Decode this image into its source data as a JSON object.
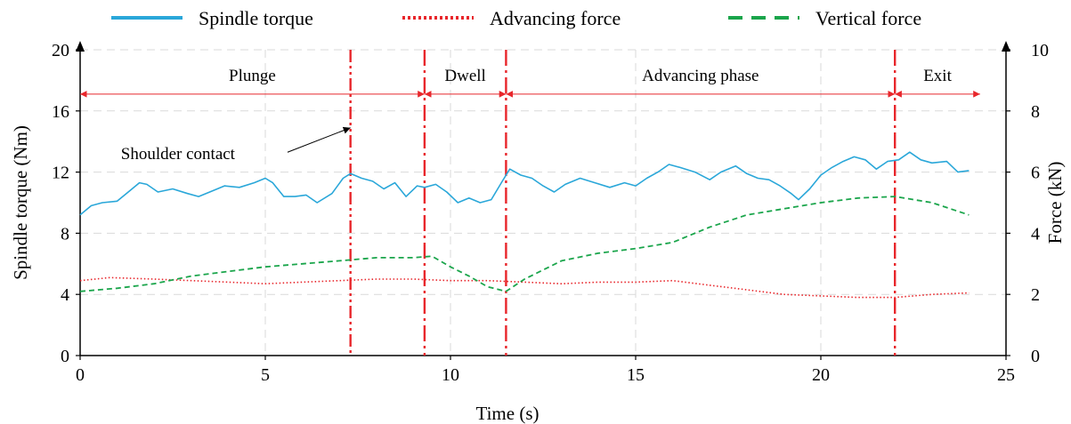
{
  "chart_data": {
    "type": "line",
    "title": "",
    "xlabel": "Time (s)",
    "ylabel": "Spindle torque (Nm)",
    "y2label": "Force (kN)",
    "xlim": [
      0,
      25
    ],
    "ylim": [
      0,
      20
    ],
    "y2lim": [
      0,
      10
    ],
    "xticks": [
      "0",
      "5",
      "10",
      "15",
      "20",
      "25"
    ],
    "yticks": [
      "0",
      "4",
      "8",
      "12",
      "16",
      "20"
    ],
    "y2ticks": [
      "0",
      "2",
      "4",
      "6",
      "8",
      "10"
    ],
    "grid": true,
    "legend_position": "top",
    "series": [
      {
        "name": "Spindle torque",
        "axis": "left",
        "color": "#2aa7d9",
        "style": "solid",
        "points": [
          [
            0,
            9.2
          ],
          [
            0.3,
            9.8
          ],
          [
            0.6,
            10.0
          ],
          [
            1.0,
            10.1
          ],
          [
            1.3,
            10.7
          ],
          [
            1.6,
            11.3
          ],
          [
            1.8,
            11.2
          ],
          [
            2.1,
            10.7
          ],
          [
            2.5,
            10.9
          ],
          [
            2.9,
            10.6
          ],
          [
            3.2,
            10.4
          ],
          [
            3.5,
            10.7
          ],
          [
            3.9,
            11.1
          ],
          [
            4.3,
            11.0
          ],
          [
            4.7,
            11.3
          ],
          [
            5.0,
            11.6
          ],
          [
            5.2,
            11.3
          ],
          [
            5.5,
            10.4
          ],
          [
            5.8,
            10.4
          ],
          [
            6.1,
            10.5
          ],
          [
            6.4,
            10.0
          ],
          [
            6.8,
            10.6
          ],
          [
            7.1,
            11.6
          ],
          [
            7.3,
            11.9
          ],
          [
            7.6,
            11.6
          ],
          [
            7.9,
            11.4
          ],
          [
            8.2,
            10.9
          ],
          [
            8.5,
            11.3
          ],
          [
            8.8,
            10.4
          ],
          [
            9.1,
            11.1
          ],
          [
            9.3,
            11.0
          ],
          [
            9.6,
            11.2
          ],
          [
            9.9,
            10.7
          ],
          [
            10.2,
            10.0
          ],
          [
            10.5,
            10.3
          ],
          [
            10.8,
            10.0
          ],
          [
            11.1,
            10.2
          ],
          [
            11.4,
            11.4
          ],
          [
            11.6,
            12.2
          ],
          [
            11.9,
            11.8
          ],
          [
            12.2,
            11.6
          ],
          [
            12.5,
            11.1
          ],
          [
            12.8,
            10.7
          ],
          [
            13.1,
            11.2
          ],
          [
            13.5,
            11.6
          ],
          [
            13.9,
            11.3
          ],
          [
            14.3,
            11.0
          ],
          [
            14.7,
            11.3
          ],
          [
            15.0,
            11.1
          ],
          [
            15.3,
            11.6
          ],
          [
            15.6,
            12.0
          ],
          [
            15.9,
            12.5
          ],
          [
            16.2,
            12.3
          ],
          [
            16.6,
            12.0
          ],
          [
            17.0,
            11.5
          ],
          [
            17.3,
            12.0
          ],
          [
            17.7,
            12.4
          ],
          [
            18.0,
            11.9
          ],
          [
            18.3,
            11.6
          ],
          [
            18.6,
            11.5
          ],
          [
            18.9,
            11.1
          ],
          [
            19.2,
            10.6
          ],
          [
            19.4,
            10.2
          ],
          [
            19.7,
            10.9
          ],
          [
            20.0,
            11.8
          ],
          [
            20.3,
            12.3
          ],
          [
            20.6,
            12.7
          ],
          [
            20.9,
            13.0
          ],
          [
            21.2,
            12.8
          ],
          [
            21.5,
            12.2
          ],
          [
            21.8,
            12.7
          ],
          [
            22.1,
            12.8
          ],
          [
            22.4,
            13.3
          ],
          [
            22.7,
            12.8
          ],
          [
            23.0,
            12.6
          ],
          [
            23.4,
            12.7
          ],
          [
            23.7,
            12.0
          ],
          [
            24.0,
            12.1
          ]
        ]
      },
      {
        "name": "Advancing force",
        "axis": "right",
        "color": "#e8262b",
        "style": "dotted",
        "points": [
          [
            0,
            2.45
          ],
          [
            0.8,
            2.55
          ],
          [
            2.0,
            2.5
          ],
          [
            3.0,
            2.45
          ],
          [
            4.0,
            2.4
          ],
          [
            5.0,
            2.35
          ],
          [
            6.0,
            2.4
          ],
          [
            7.0,
            2.45
          ],
          [
            8.0,
            2.5
          ],
          [
            9.0,
            2.5
          ],
          [
            10.0,
            2.45
          ],
          [
            11.0,
            2.45
          ],
          [
            12.0,
            2.4
          ],
          [
            13.0,
            2.35
          ],
          [
            14.0,
            2.4
          ],
          [
            15.0,
            2.4
          ],
          [
            16.0,
            2.45
          ],
          [
            17.0,
            2.3
          ],
          [
            18.0,
            2.15
          ],
          [
            19.0,
            2.0
          ],
          [
            20.0,
            1.95
          ],
          [
            21.0,
            1.9
          ],
          [
            22.0,
            1.9
          ],
          [
            23.0,
            2.0
          ],
          [
            24.0,
            2.05
          ]
        ]
      },
      {
        "name": "Vertical force",
        "axis": "right",
        "color": "#1aa54b",
        "style": "dashed",
        "points": [
          [
            0,
            2.1
          ],
          [
            1.0,
            2.2
          ],
          [
            2.0,
            2.35
          ],
          [
            3.0,
            2.6
          ],
          [
            4.0,
            2.75
          ],
          [
            5.0,
            2.9
          ],
          [
            6.0,
            3.0
          ],
          [
            7.0,
            3.1
          ],
          [
            8.0,
            3.2
          ],
          [
            9.0,
            3.2
          ],
          [
            9.5,
            3.25
          ],
          [
            10.0,
            2.9
          ],
          [
            10.5,
            2.6
          ],
          [
            11.0,
            2.25
          ],
          [
            11.5,
            2.1
          ],
          [
            12.0,
            2.5
          ],
          [
            13.0,
            3.1
          ],
          [
            14.0,
            3.35
          ],
          [
            15.0,
            3.5
          ],
          [
            16.0,
            3.7
          ],
          [
            17.0,
            4.2
          ],
          [
            18.0,
            4.6
          ],
          [
            19.0,
            4.8
          ],
          [
            20.0,
            5.0
          ],
          [
            21.0,
            5.15
          ],
          [
            22.0,
            5.2
          ],
          [
            23.0,
            5.0
          ],
          [
            24.0,
            4.6
          ]
        ]
      }
    ],
    "phase_lines": [
      {
        "x": 7.3,
        "style": "dash-dot-dot"
      },
      {
        "x": 9.3,
        "style": "dash-dot"
      },
      {
        "x": 11.5,
        "style": "dash-dot"
      },
      {
        "x": 22.0,
        "style": "dash-dot"
      }
    ],
    "phases": [
      {
        "label": "Plunge",
        "from": 0,
        "to": 9.3
      },
      {
        "label": "Dwell",
        "from": 9.3,
        "to": 11.5
      },
      {
        "label": "Advancing phase",
        "from": 11.5,
        "to": 22.0
      },
      {
        "label": "Exit",
        "from": 22.0,
        "to": 24.3
      }
    ],
    "annotations": [
      {
        "text": "Shoulder contact",
        "text_at": [
          1.1,
          13.2
        ],
        "arrow_from": [
          5.6,
          13.3
        ],
        "arrow_to": [
          7.3,
          14.9
        ]
      }
    ]
  }
}
